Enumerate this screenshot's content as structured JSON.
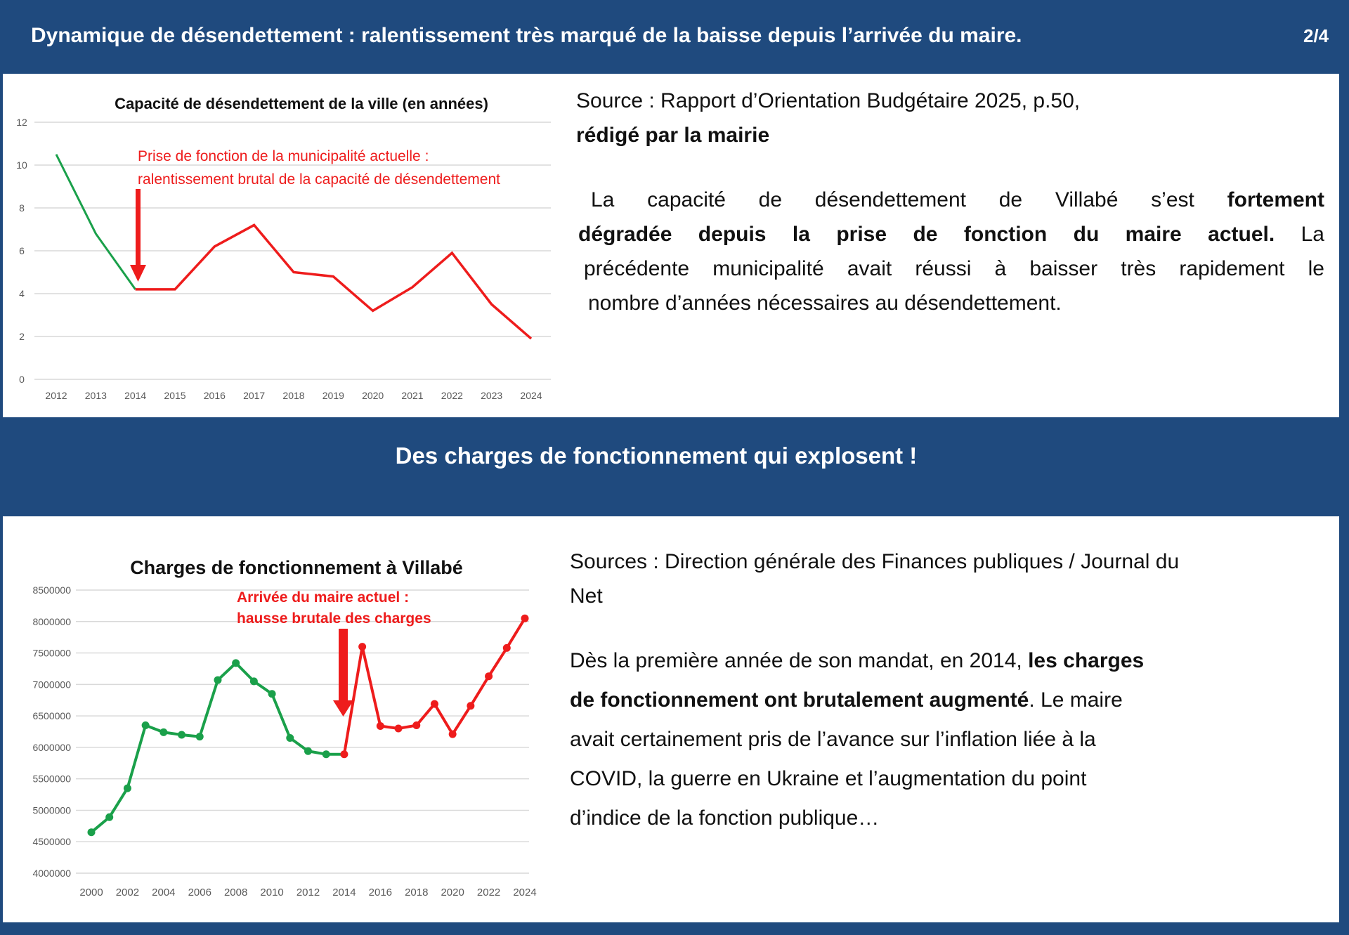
{
  "header": {
    "title": "Dynamique de désendettement : ralentissement très marqué de la baisse depuis l’arrivée du maire.",
    "page": "2/4"
  },
  "section1": {
    "source_line1": "Source : Rapport d’Orientation Budgétaire 2025, p.50,",
    "source_line2": "rédigé par la mairie",
    "para": {
      "l1a": "La capacité de désendettement de Villabé s’est ",
      "l1b": "fortement",
      "l2a": "dégradée depuis la prise de fonction du maire actuel.",
      "l2b": " La",
      "l3": "précédente municipalité avait réussi à baisser très rapidement le",
      "l4": "nombre d’années nécessaires au désendettement."
    }
  },
  "band2": {
    "title": "Des charges de fonctionnement qui explosent !"
  },
  "section2": {
    "source_line1": "Sources : Direction générale des Finances publiques / Journal du",
    "source_line2": "Net",
    "para": {
      "l1a": "Dès la première année de son mandat, en 2014, ",
      "l1b": "les charges",
      "l2a": "de fonctionnement ont brutalement augmenté",
      "l2b": ". Le maire",
      "l3": "avait certainement pris de l’avance sur l’inflation liée à la",
      "l4": "COVID, la guerre en Ukraine et l’augmentation du point",
      "l5": "d’indice de la fonction publique…"
    }
  },
  "colors": {
    "blue": "#1f4a7e",
    "green": "#1aa04a",
    "red": "#ee1c1c"
  },
  "chart_data": [
    {
      "type": "line",
      "title": "Capacité de désendettement de la ville (en années)",
      "categories": [
        "2012",
        "2013",
        "2014",
        "2015",
        "2016",
        "2017",
        "2018",
        "2019",
        "2020",
        "2021",
        "2022",
        "2023",
        "2024"
      ],
      "values": [
        10.5,
        6.8,
        4.2,
        4.2,
        6.2,
        7.2,
        5.0,
        4.8,
        3.2,
        4.3,
        5.9,
        3.5,
        1.9
      ],
      "split_index": 2,
      "yticks": [
        "0",
        "2",
        "4",
        "6",
        "8",
        "10",
        "12"
      ],
      "ylim": [
        0,
        12
      ],
      "annotation": [
        "Prise de fonction de la municipalité actuelle :",
        "ralentissement brutal de la capacité de désendettement"
      ],
      "annotation_year": "2014",
      "grid": true
    },
    {
      "type": "line",
      "title": "Charges de fonctionnement à Villabé",
      "x": [
        2000,
        2001,
        2002,
        2003,
        2004,
        2005,
        2006,
        2007,
        2008,
        2009,
        2010,
        2011,
        2012,
        2013,
        2014,
        2015,
        2016,
        2017,
        2018,
        2019,
        2020,
        2021,
        2022,
        2023,
        2024
      ],
      "values": [
        4650000,
        4890000,
        5350000,
        6350000,
        6240000,
        6200000,
        6170000,
        7070000,
        7340000,
        7050000,
        6850000,
        6150000,
        5940000,
        5890000,
        5890000,
        7600000,
        6340000,
        6300000,
        6350000,
        6690000,
        6210000,
        6660000,
        7130000,
        7580000,
        8050000
      ],
      "split_year": 2014,
      "xticks": [
        "2000",
        "2002",
        "2004",
        "2006",
        "2008",
        "2010",
        "2012",
        "2014",
        "2016",
        "2018",
        "2020",
        "2022",
        "2024"
      ],
      "yticks": [
        "4000000",
        "4500000",
        "5000000",
        "5500000",
        "6000000",
        "6500000",
        "7000000",
        "7500000",
        "8000000",
        "8500000"
      ],
      "ylim": [
        4000000,
        8500000
      ],
      "annotation": [
        "Arrivée du maire actuel :",
        "hausse brutale des charges"
      ],
      "grid": true
    }
  ]
}
